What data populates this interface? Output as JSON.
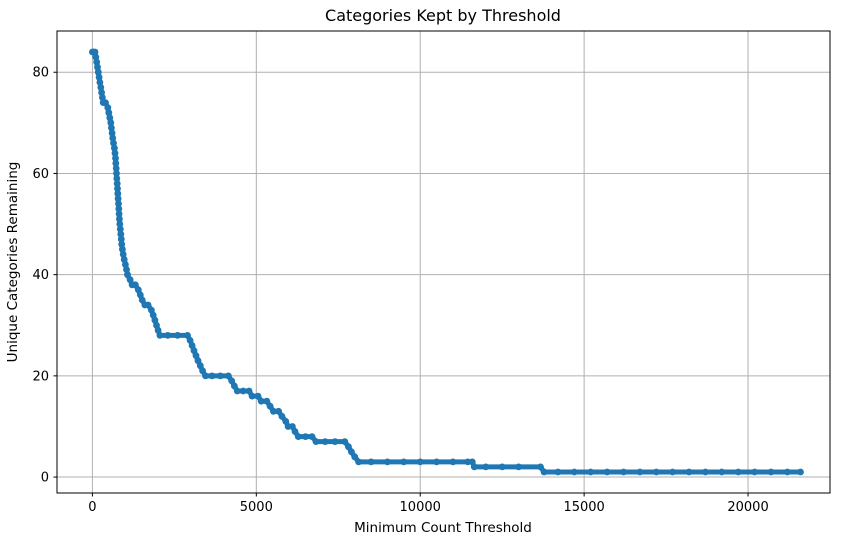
{
  "figure": {
    "background": "#ffffff"
  },
  "chart_data": {
    "type": "line",
    "title": "Categories Kept by Threshold",
    "xlabel": "Minimum Count Threshold",
    "ylabel": "Unique Categories Remaining",
    "x_ticks": [
      0,
      5000,
      10000,
      15000,
      20000
    ],
    "y_ticks": [
      0,
      20,
      40,
      60,
      80
    ],
    "xlim": [
      -1080,
      22500
    ],
    "ylim": [
      -3.15,
      88.15
    ],
    "grid": true,
    "legend": "none",
    "line_color": "#1f77b4",
    "grid_color": "#b0b0b0",
    "spine_color": "#000000",
    "series_name": "unique-categories-remaining",
    "points": [
      [
        0,
        84
      ],
      [
        40,
        84
      ],
      [
        80,
        84
      ],
      [
        105,
        83
      ],
      [
        130,
        82
      ],
      [
        155,
        81
      ],
      [
        180,
        80
      ],
      [
        205,
        79
      ],
      [
        230,
        78
      ],
      [
        255,
        77
      ],
      [
        280,
        76
      ],
      [
        305,
        75
      ],
      [
        330,
        74
      ],
      [
        400,
        74
      ],
      [
        470,
        73
      ],
      [
        500,
        72
      ],
      [
        530,
        71
      ],
      [
        560,
        70
      ],
      [
        580,
        69
      ],
      [
        600,
        68
      ],
      [
        620,
        67
      ],
      [
        645,
        66
      ],
      [
        670,
        65
      ],
      [
        690,
        64
      ],
      [
        705,
        63
      ],
      [
        715,
        62
      ],
      [
        725,
        61
      ],
      [
        735,
        60
      ],
      [
        745,
        59
      ],
      [
        755,
        58
      ],
      [
        765,
        57
      ],
      [
        775,
        56
      ],
      [
        785,
        55
      ],
      [
        795,
        54
      ],
      [
        805,
        53
      ],
      [
        815,
        52
      ],
      [
        825,
        51
      ],
      [
        835,
        50
      ],
      [
        850,
        49
      ],
      [
        865,
        48
      ],
      [
        880,
        47
      ],
      [
        895,
        46
      ],
      [
        915,
        45
      ],
      [
        940,
        44
      ],
      [
        970,
        43
      ],
      [
        1005,
        42
      ],
      [
        1040,
        41
      ],
      [
        1070,
        40
      ],
      [
        1150,
        39
      ],
      [
        1210,
        38
      ],
      [
        1310,
        38
      ],
      [
        1400,
        37
      ],
      [
        1460,
        36
      ],
      [
        1520,
        35
      ],
      [
        1600,
        34
      ],
      [
        1700,
        34
      ],
      [
        1800,
        33
      ],
      [
        1855,
        32
      ],
      [
        1905,
        31
      ],
      [
        1955,
        30
      ],
      [
        2005,
        29
      ],
      [
        2060,
        28
      ],
      [
        2300,
        28
      ],
      [
        2600,
        28
      ],
      [
        2900,
        28
      ],
      [
        2980,
        27
      ],
      [
        3040,
        26
      ],
      [
        3100,
        25
      ],
      [
        3160,
        24
      ],
      [
        3220,
        23
      ],
      [
        3290,
        22
      ],
      [
        3360,
        21
      ],
      [
        3450,
        20
      ],
      [
        3650,
        20
      ],
      [
        3900,
        20
      ],
      [
        4150,
        20
      ],
      [
        4250,
        19
      ],
      [
        4330,
        18
      ],
      [
        4420,
        17
      ],
      [
        4600,
        17
      ],
      [
        4780,
        17
      ],
      [
        4870,
        16
      ],
      [
        5050,
        16
      ],
      [
        5150,
        15
      ],
      [
        5320,
        15
      ],
      [
        5420,
        14
      ],
      [
        5520,
        13
      ],
      [
        5680,
        13
      ],
      [
        5780,
        12
      ],
      [
        5900,
        11
      ],
      [
        5970,
        10
      ],
      [
        6100,
        10
      ],
      [
        6180,
        9
      ],
      [
        6280,
        8
      ],
      [
        6500,
        8
      ],
      [
        6700,
        8
      ],
      [
        6820,
        7
      ],
      [
        7100,
        7
      ],
      [
        7400,
        7
      ],
      [
        7700,
        7
      ],
      [
        7810,
        6
      ],
      [
        7900,
        5
      ],
      [
        8000,
        4
      ],
      [
        8120,
        3
      ],
      [
        8500,
        3
      ],
      [
        9000,
        3
      ],
      [
        9500,
        3
      ],
      [
        10000,
        3
      ],
      [
        10500,
        3
      ],
      [
        11000,
        3
      ],
      [
        11450,
        3
      ],
      [
        11590,
        3
      ],
      [
        11650,
        2
      ],
      [
        12000,
        2
      ],
      [
        12500,
        2
      ],
      [
        13000,
        2
      ],
      [
        13670,
        2
      ],
      [
        13780,
        1
      ],
      [
        14200,
        1
      ],
      [
        14700,
        1
      ],
      [
        15200,
        1
      ],
      [
        15700,
        1
      ],
      [
        16200,
        1
      ],
      [
        16700,
        1
      ],
      [
        17200,
        1
      ],
      [
        17700,
        1
      ],
      [
        18200,
        1
      ],
      [
        18700,
        1
      ],
      [
        19200,
        1
      ],
      [
        19700,
        1
      ],
      [
        20200,
        1
      ],
      [
        20700,
        1
      ],
      [
        21200,
        1
      ],
      [
        21600,
        1
      ]
    ]
  }
}
